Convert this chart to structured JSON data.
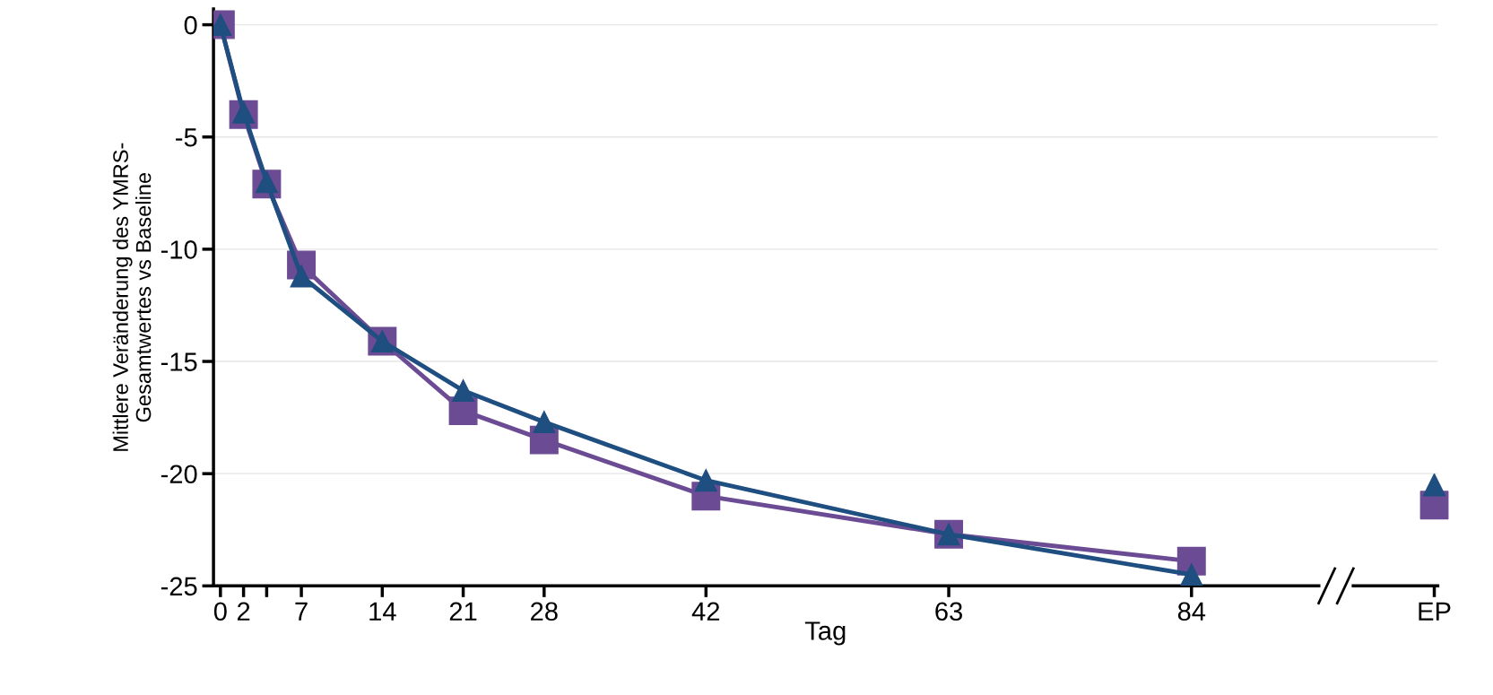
{
  "chart_data": {
    "type": "line",
    "xlabel": "Tag",
    "ylabel": "Mittlere Veränderung des YMRS-\nGesamtwertes vs Baseline",
    "xlim": [
      -0.6,
      105.3
    ],
    "ylim": [
      -25,
      0.7
    ],
    "xticks": [
      0,
      2,
      {
        "value": 4,
        "label": null
      },
      7,
      14,
      21,
      28,
      42,
      63,
      84,
      {
        "value": 105,
        "label": "EP"
      }
    ],
    "yticks": [
      0,
      -5,
      -10,
      -15,
      -20,
      -25
    ],
    "grid": "y",
    "legend": false,
    "line_style": "solid",
    "series": [
      {
        "color": "#6b4c94",
        "marker": "square",
        "x": [
          0,
          2,
          4,
          7,
          14,
          21,
          28,
          42,
          63,
          84
        ],
        "values": [
          0,
          -4.0,
          -7.1,
          -10.7,
          -14.1,
          -17.2,
          -18.5,
          -21.0,
          -22.7,
          -23.9
        ]
      },
      {
        "color": "#1f4e80",
        "marker": "triangle",
        "x": [
          0,
          2,
          4,
          7,
          14,
          21,
          28,
          42,
          63,
          84
        ],
        "values": [
          0,
          -3.9,
          -7.0,
          -11.2,
          -14.1,
          -16.3,
          -17.7,
          -20.3,
          -22.7,
          -24.5
        ]
      },
      {
        "type": "scatter",
        "color": "#6b4c94",
        "marker": "square",
        "x": [
          105
        ],
        "values": [
          -21.4
        ]
      },
      {
        "type": "scatter",
        "color": "#1f4e80",
        "marker": "triangle",
        "x": [
          105
        ],
        "values": [
          -20.5
        ]
      }
    ]
  }
}
